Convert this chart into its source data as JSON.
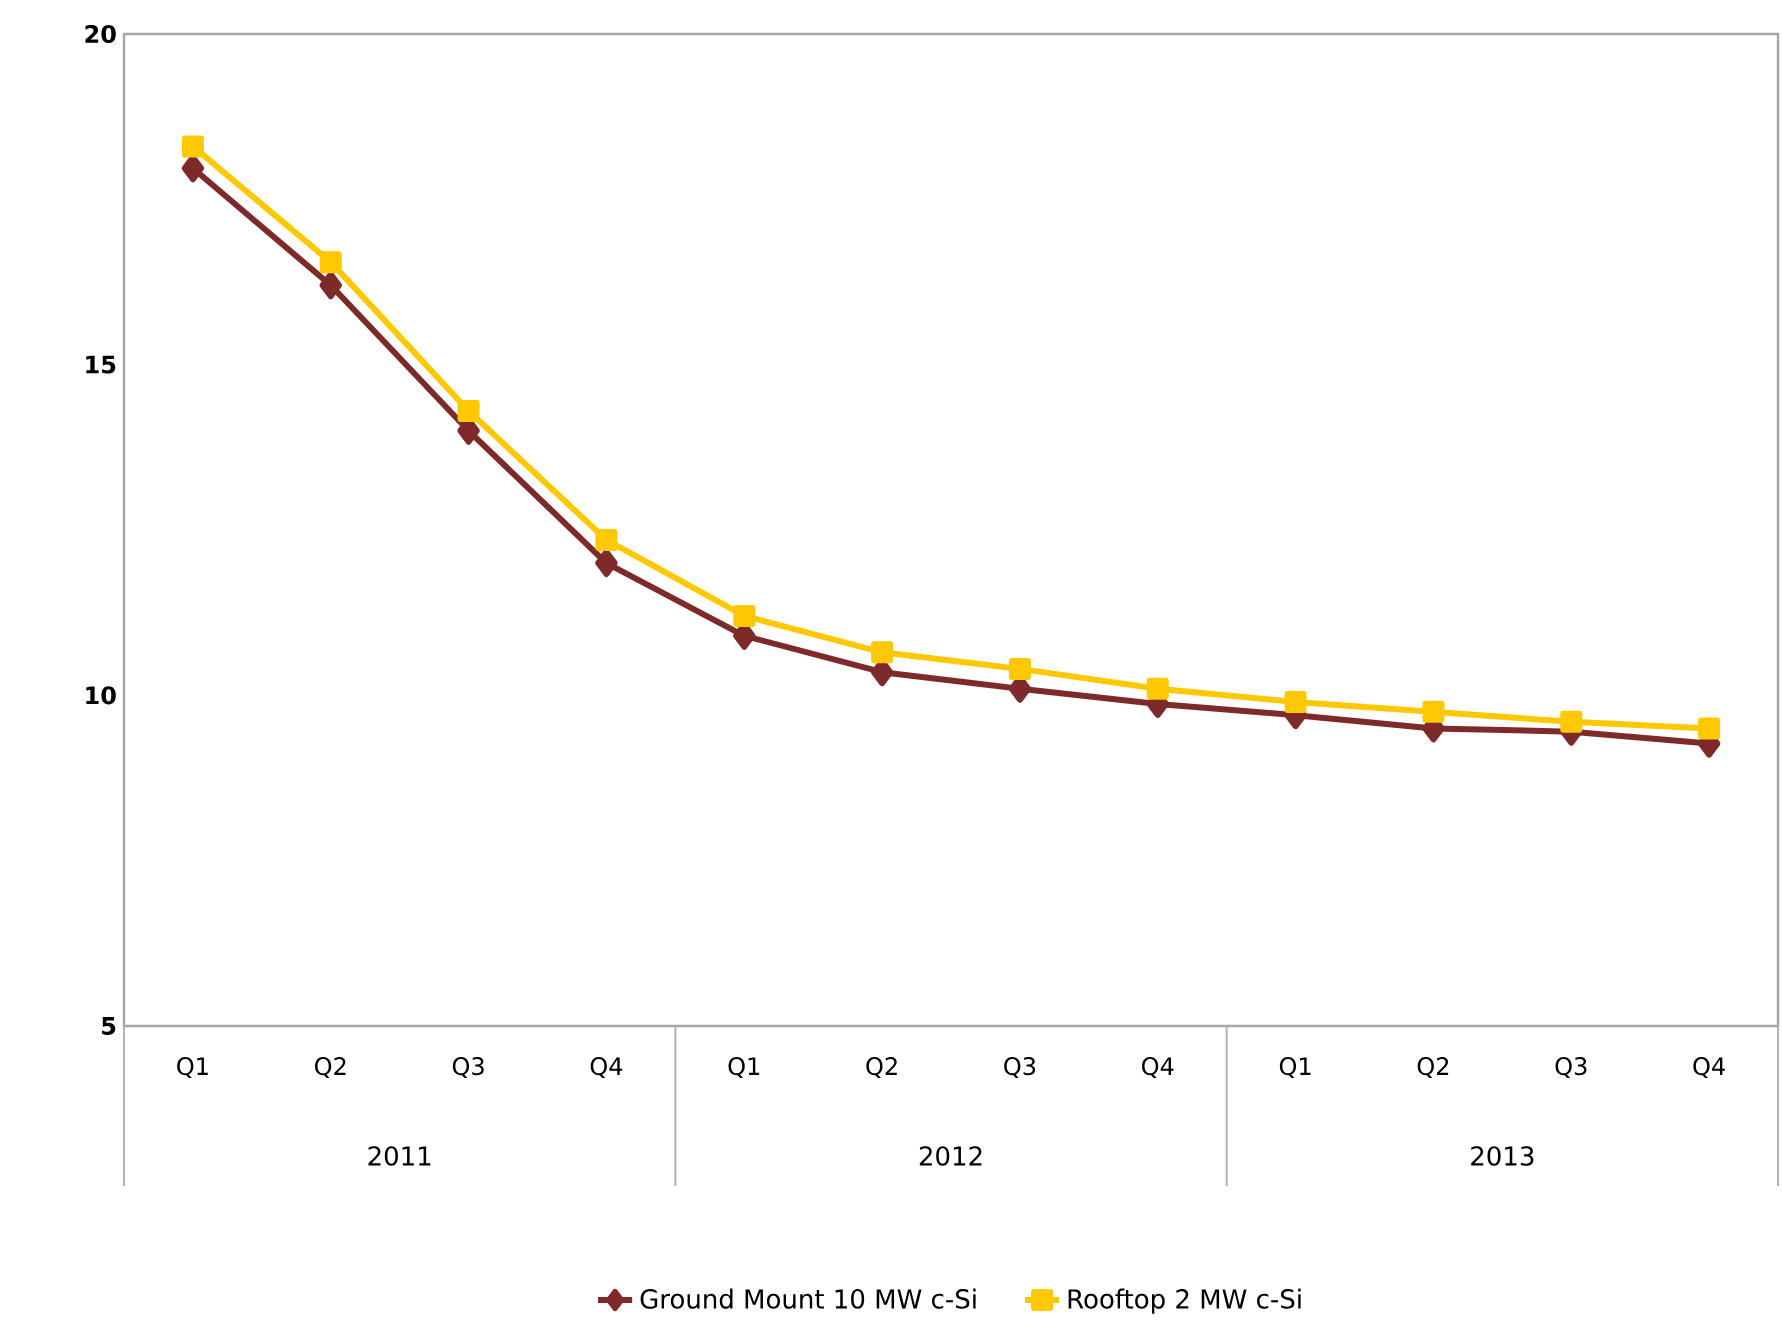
{
  "chart_data": {
    "type": "line",
    "categories": [
      "Q1",
      "Q2",
      "Q3",
      "Q4",
      "Q1",
      "Q2",
      "Q3",
      "Q4",
      "Q1",
      "Q2",
      "Q3",
      "Q4"
    ],
    "annotations": [
      "2011",
      "2012",
      "2013"
    ],
    "series": [
      {
        "name": "Ground Mount 10 MW c-Si",
        "color": "#7f2a2a",
        "marker": "diamond",
        "values": [
          17.97,
          16.2,
          14.0,
          12.0,
          10.9,
          10.35,
          10.1,
          9.87,
          9.7,
          9.5,
          9.45,
          9.27
        ]
      },
      {
        "name": "Rooftop 2 MW c-Si",
        "color": "#ffc800",
        "marker": "square",
        "values": [
          18.3,
          16.55,
          14.3,
          12.35,
          11.2,
          10.65,
          10.4,
          10.1,
          9.9,
          9.75,
          9.6,
          9.5
        ]
      }
    ],
    "ylim": [
      5,
      20
    ],
    "yticks": [
      5,
      10,
      15,
      20
    ],
    "grid": false,
    "legend": "bottom",
    "line_style": "solid"
  }
}
